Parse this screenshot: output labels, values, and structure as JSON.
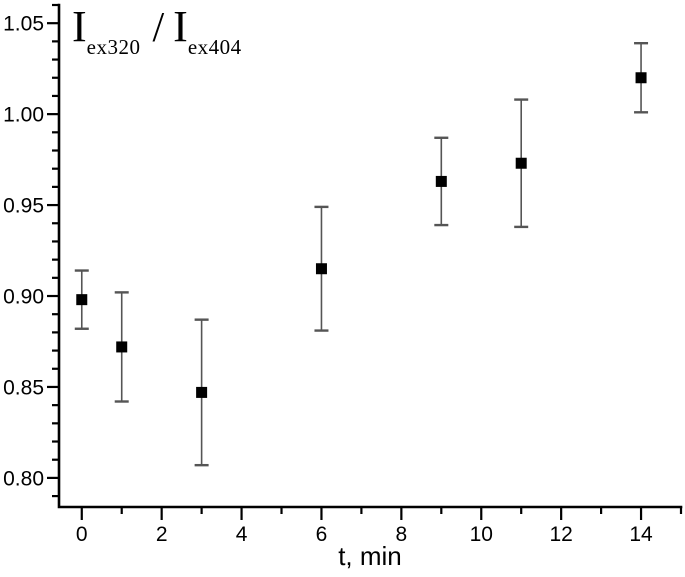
{
  "chart": {
    "annotation": {
      "term1": {
        "base": "I",
        "sub": "ex320"
      },
      "separator": "/",
      "term2": {
        "base": "I",
        "sub": "ex404"
      }
    }
  },
  "chart_data": {
    "type": "scatter",
    "title": "",
    "ylabel": "I ex320 / I ex404",
    "xlabel": "t, min",
    "x": [
      0,
      1,
      3,
      6,
      9,
      11,
      14
    ],
    "y": [
      0.898,
      0.872,
      0.847,
      0.915,
      0.963,
      0.973,
      1.02
    ],
    "yerr": [
      0.016,
      0.03,
      0.04,
      0.034,
      0.024,
      0.035,
      0.019
    ],
    "xlim": [
      -0.57,
      15.0
    ],
    "ylim": [
      0.784,
      1.06
    ],
    "x_major_ticks": [
      0,
      2,
      4,
      6,
      8,
      10,
      12,
      14
    ],
    "x_tick_labels": [
      "0",
      "2",
      "4",
      "6",
      "8",
      "10",
      "12",
      "14"
    ],
    "x_minor_ticks": [
      1,
      3,
      5,
      7,
      9,
      11,
      13,
      15
    ],
    "y_major_ticks": [
      0.8,
      0.85,
      0.9,
      0.95,
      1.0,
      1.05
    ],
    "y_tick_labels": [
      "0.80",
      "0.85",
      "0.90",
      "0.95",
      "1.00",
      "1.05"
    ],
    "y_minor_step": 0.01,
    "grid": false,
    "legend": null,
    "marker": "filled-square",
    "colors": {
      "marker": "#000000",
      "error_bar": "#555555",
      "axis": "#000000",
      "background": "#ffffff"
    }
  }
}
